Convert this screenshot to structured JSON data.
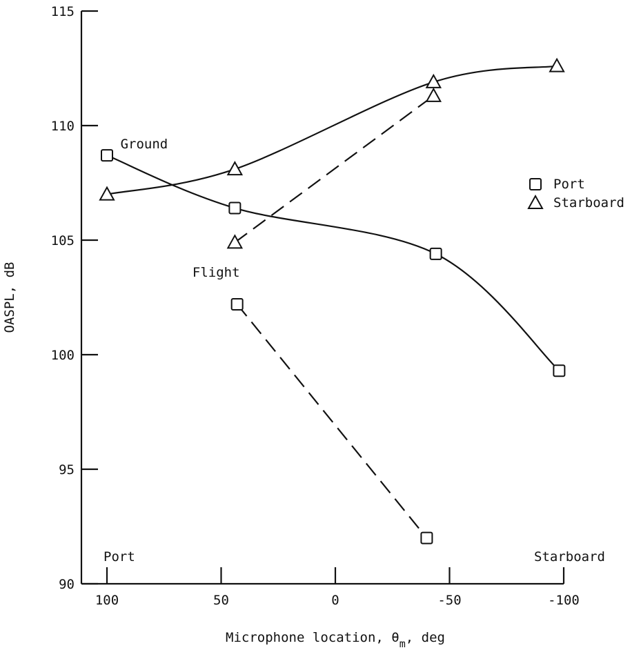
{
  "chart_data": {
    "type": "line",
    "xlabel": "Microphone location, θ",
    "xlabel_sub": "m",
    "xlabel_suffix": ", deg",
    "ylabel": "OASPL, dB",
    "xlim": [
      100,
      -100
    ],
    "ylim": [
      90,
      115
    ],
    "x_reversed": true,
    "xticks": [
      100,
      50,
      0,
      -50,
      -100
    ],
    "xtick_labels": [
      "100",
      "50",
      "0",
      "-50",
      "-100"
    ],
    "yticks": [
      90,
      95,
      100,
      105,
      110,
      115
    ],
    "ytick_labels": [
      "90",
      "95",
      "100",
      "105",
      "110",
      "115"
    ],
    "grid": false,
    "legend": {
      "placement": "right",
      "entries": [
        {
          "label": "Port",
          "marker": "square"
        },
        {
          "label": "Starboard",
          "marker": "triangle"
        }
      ]
    },
    "annotations": [
      {
        "text": "Ground",
        "x": 82,
        "y": 109.0
      },
      {
        "text": "Flight",
        "x": 52,
        "y": 103.4
      },
      {
        "text": "Port",
        "x": 100,
        "y": 91.0
      },
      {
        "text": "Starboard",
        "x": -100,
        "y": 91.0
      }
    ],
    "series": [
      {
        "condition": "Ground",
        "side": "Port",
        "marker": "square",
        "style": "solid",
        "x": [
          100,
          44,
          -44,
          -98
        ],
        "y": [
          108.7,
          106.4,
          104.4,
          99.3
        ]
      },
      {
        "condition": "Ground",
        "side": "Starboard",
        "marker": "triangle",
        "style": "solid",
        "x": [
          100,
          44,
          -43,
          -97
        ],
        "y": [
          107.0,
          108.1,
          111.9,
          112.6
        ]
      },
      {
        "condition": "Flight",
        "side": "Port",
        "marker": "square",
        "style": "dashed",
        "x": [
          43,
          -40
        ],
        "y": [
          102.2,
          92.0
        ]
      },
      {
        "condition": "Flight",
        "side": "Starboard",
        "marker": "triangle",
        "style": "dashed",
        "x": [
          44,
          -43
        ],
        "y": [
          104.9,
          111.3
        ]
      }
    ]
  }
}
